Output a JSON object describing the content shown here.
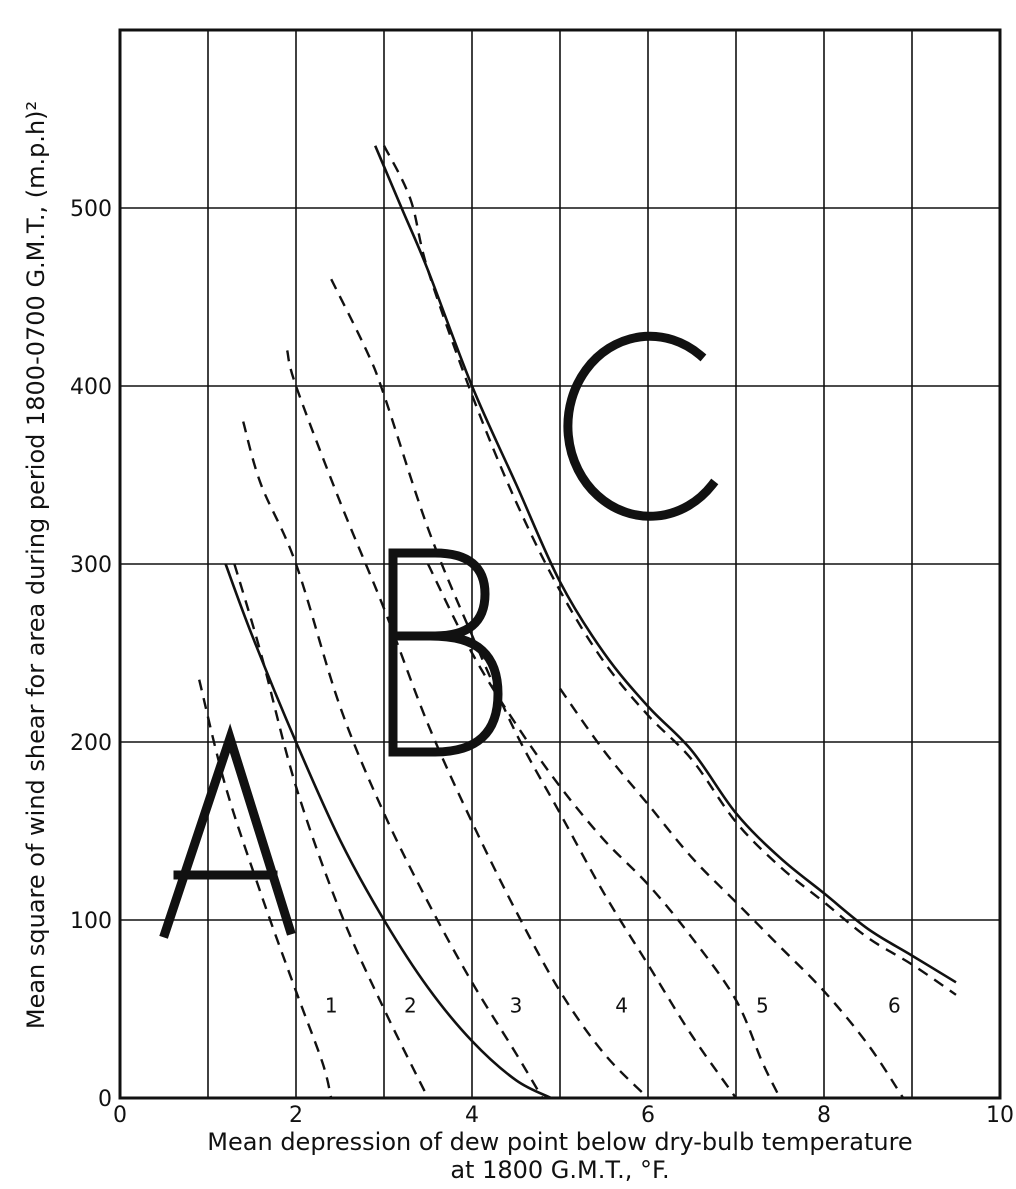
{
  "chart_data": {
    "type": "line",
    "xlabel_line1": "Mean depression of dew point below dry-bulb temperature",
    "xlabel_line2": "at 1800 G.M.T., °F.",
    "ylabel": "Mean square of wind shear for area during period 1800-0700 G.M.T., (m.p.h)²",
    "xlim": [
      0,
      10
    ],
    "ylim": [
      0,
      600
    ],
    "x_ticks": [
      "0",
      "2",
      "4",
      "6",
      "8",
      "10"
    ],
    "y_ticks": [
      "0",
      "100",
      "200",
      "300",
      "400",
      "500"
    ],
    "grid": true,
    "zone_letters": [
      "A",
      "B",
      "C"
    ],
    "region_labels": [
      {
        "text": "1",
        "x": 2.4,
        "y": 48
      },
      {
        "text": "2",
        "x": 3.3,
        "y": 48
      },
      {
        "text": "3",
        "x": 4.5,
        "y": 48
      },
      {
        "text": "4",
        "x": 5.7,
        "y": 48
      },
      {
        "text": "5",
        "x": 7.3,
        "y": 48
      },
      {
        "text": "6",
        "x": 8.8,
        "y": 48
      }
    ],
    "series": [
      {
        "style": "dashed",
        "points": [
          [
            0.9,
            235
          ],
          [
            1.2,
            175
          ],
          [
            1.6,
            115
          ],
          [
            2.0,
            60
          ],
          [
            2.3,
            20
          ],
          [
            2.4,
            0
          ]
        ]
      },
      {
        "style": "dashed",
        "points": [
          [
            1.3,
            300
          ],
          [
            1.6,
            250
          ],
          [
            2.0,
            175
          ],
          [
            2.5,
            105
          ],
          [
            3.0,
            50
          ],
          [
            3.5,
            0
          ]
        ]
      },
      {
        "style": "solid",
        "points": [
          [
            1.2,
            300
          ],
          [
            1.5,
            260
          ],
          [
            2.0,
            200
          ],
          [
            2.5,
            145
          ],
          [
            3.0,
            100
          ],
          [
            3.5,
            62
          ],
          [
            4.0,
            32
          ],
          [
            4.5,
            10
          ],
          [
            4.9,
            0
          ]
        ]
      },
      {
        "style": "dashed",
        "points": [
          [
            1.4,
            380
          ],
          [
            1.6,
            345
          ],
          [
            2.0,
            300
          ],
          [
            2.5,
            220
          ],
          [
            3.0,
            160
          ],
          [
            3.5,
            110
          ],
          [
            4.0,
            65
          ],
          [
            4.5,
            25
          ],
          [
            4.8,
            0
          ]
        ]
      },
      {
        "style": "dashed",
        "points": [
          [
            1.9,
            420
          ],
          [
            2.0,
            400
          ],
          [
            2.5,
            335
          ],
          [
            3.0,
            275
          ],
          [
            3.5,
            210
          ],
          [
            4.0,
            155
          ],
          [
            4.5,
            105
          ],
          [
            5.0,
            60
          ],
          [
            5.5,
            25
          ],
          [
            6.0,
            0
          ]
        ]
      },
      {
        "style": "dashed",
        "points": [
          [
            2.4,
            460
          ],
          [
            2.8,
            420
          ],
          [
            3.0,
            395
          ],
          [
            3.5,
            320
          ],
          [
            4.0,
            260
          ],
          [
            4.5,
            205
          ],
          [
            5.0,
            160
          ],
          [
            5.5,
            115
          ],
          [
            6.0,
            75
          ],
          [
            6.5,
            35
          ],
          [
            7.0,
            0
          ]
        ]
      },
      {
        "style": "solid",
        "points": [
          [
            2.9,
            535
          ],
          [
            3.2,
            500
          ],
          [
            3.5,
            465
          ],
          [
            4.0,
            400
          ],
          [
            4.5,
            345
          ],
          [
            5.0,
            290
          ],
          [
            5.5,
            250
          ],
          [
            6.0,
            220
          ],
          [
            6.5,
            195
          ],
          [
            7.0,
            160
          ],
          [
            7.5,
            135
          ],
          [
            8.0,
            115
          ],
          [
            8.5,
            95
          ],
          [
            9.0,
            80
          ],
          [
            9.5,
            65
          ]
        ]
      },
      {
        "style": "dashed",
        "points": [
          [
            3.0,
            535
          ],
          [
            3.3,
            505
          ],
          [
            3.5,
            465
          ],
          [
            4.0,
            395
          ],
          [
            4.5,
            335
          ],
          [
            5.0,
            285
          ],
          [
            5.5,
            245
          ],
          [
            6.0,
            215
          ],
          [
            6.5,
            190
          ],
          [
            7.0,
            155
          ],
          [
            7.5,
            130
          ],
          [
            8.0,
            110
          ],
          [
            8.5,
            90
          ],
          [
            9.0,
            75
          ],
          [
            9.5,
            58
          ]
        ]
      },
      {
        "style": "dashed",
        "points": [
          [
            3.5,
            300
          ],
          [
            4.0,
            250
          ],
          [
            4.5,
            210
          ],
          [
            5.0,
            175
          ],
          [
            5.5,
            145
          ],
          [
            6.0,
            120
          ],
          [
            6.5,
            90
          ],
          [
            7.0,
            55
          ],
          [
            7.3,
            20
          ],
          [
            7.5,
            0
          ]
        ]
      },
      {
        "style": "dashed",
        "points": [
          [
            5.0,
            230
          ],
          [
            5.5,
            195
          ],
          [
            6.0,
            165
          ],
          [
            6.5,
            135
          ],
          [
            7.0,
            110
          ],
          [
            7.5,
            85
          ],
          [
            8.0,
            60
          ],
          [
            8.5,
            30
          ],
          [
            8.9,
            0
          ]
        ]
      }
    ]
  }
}
